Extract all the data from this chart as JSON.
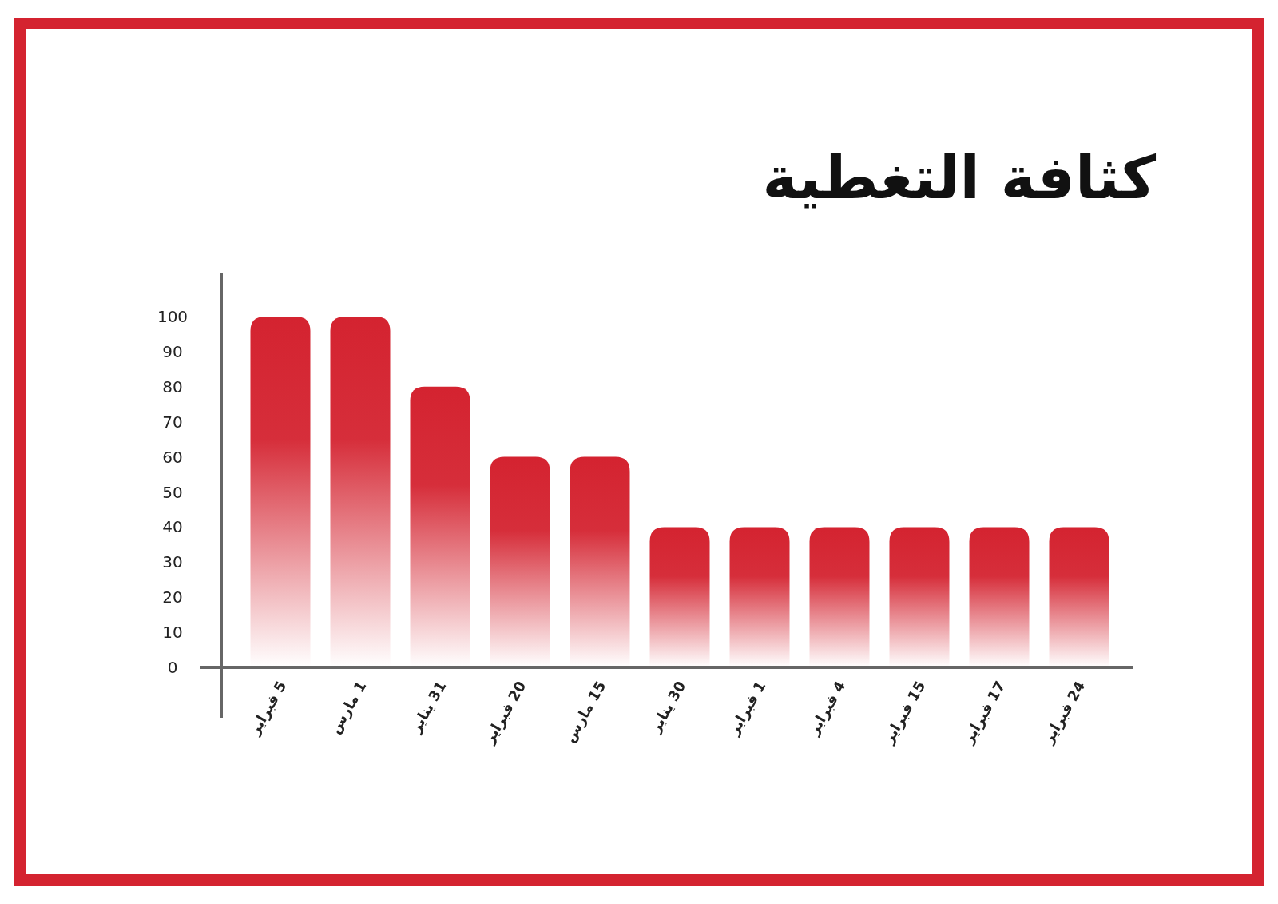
{
  "chart_data": {
    "type": "bar",
    "title": "كثافة التغطية",
    "categories": [
      "5 فبراير",
      "1 مارس",
      "31 يناير",
      "20 فبراير",
      "15 مارس",
      "30 يناير",
      "1 فبراير",
      "4 فبراير",
      "15 فبراير",
      "17 فبراير",
      "24 فبراير"
    ],
    "values": [
      100,
      100,
      80,
      60,
      60,
      40,
      40,
      40,
      40,
      40,
      40
    ],
    "color": "#d42330",
    "ylim": [
      0,
      100
    ],
    "yticks": [
      0,
      10,
      20,
      30,
      40,
      50,
      60,
      70,
      80,
      90,
      100
    ],
    "grid": false
  }
}
